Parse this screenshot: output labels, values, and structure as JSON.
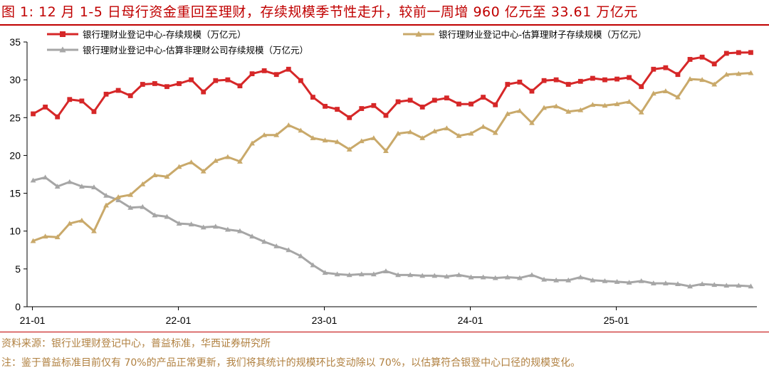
{
  "title": "图 1:  12 月 1-5 日母行资金重回至理财，存续规模季节性走升，较前一周增 960 亿元至 33.61 万亿元",
  "source": "资料来源：银行业理财登记中心，普益标准，华西证券研究所",
  "note": "注：鉴于普益标准目前仅有 70%的产品正常更新，我们将其统计的规模环比变动除以 70%，以估算符合银登中心口径的规模变化。",
  "chart_data": {
    "type": "line",
    "x_tick_labels": [
      "21-01",
      "22-01",
      "23-01",
      "24-01",
      "25-01"
    ],
    "y_ticks": [
      0,
      5,
      10,
      15,
      20,
      25,
      30,
      35
    ],
    "ylim": [
      0,
      35
    ],
    "points_per_series": 60,
    "grid": false,
    "legend_position": "top",
    "series": [
      {
        "name": "银行理财业登记中心-存续规模（万亿元）",
        "color": "#d62728",
        "marker": "square",
        "values": [
          25.5,
          26.4,
          25.1,
          27.4,
          27.2,
          25.8,
          28.1,
          28.6,
          27.9,
          29.4,
          29.5,
          29.1,
          29.5,
          30.0,
          28.4,
          29.9,
          30.0,
          29.2,
          30.8,
          31.2,
          30.7,
          31.4,
          29.9,
          27.7,
          26.5,
          26.1,
          25.0,
          26.2,
          26.6,
          25.3,
          27.1,
          27.3,
          26.4,
          27.3,
          27.6,
          26.8,
          26.8,
          27.7,
          26.7,
          29.4,
          29.7,
          28.5,
          29.9,
          30.0,
          29.4,
          29.8,
          30.2,
          30.0,
          30.1,
          30.3,
          29.1,
          31.4,
          31.6,
          30.7,
          32.7,
          33.0,
          32.1,
          33.5,
          33.6,
          33.61
        ]
      },
      {
        "name": "银行理财业登记中心-估算理财子存续规模（万亿元）",
        "color": "#c9a96a",
        "marker": "triangle",
        "values": [
          8.7,
          9.3,
          9.2,
          11.0,
          11.4,
          10.0,
          13.4,
          14.5,
          14.8,
          16.2,
          17.4,
          17.2,
          18.5,
          19.1,
          17.9,
          19.3,
          19.8,
          19.2,
          21.6,
          22.7,
          22.7,
          24.0,
          23.3,
          22.3,
          22.0,
          21.8,
          20.8,
          21.9,
          22.3,
          20.6,
          22.9,
          23.1,
          22.3,
          23.2,
          23.6,
          22.6,
          22.9,
          23.8,
          23.0,
          25.5,
          25.9,
          24.3,
          26.3,
          26.5,
          25.8,
          26.0,
          26.7,
          26.6,
          26.8,
          27.1,
          25.7,
          28.2,
          28.5,
          27.7,
          30.1,
          30.0,
          29.4,
          30.7,
          30.8,
          30.9
        ]
      },
      {
        "name": "银行理财业登记中心-估算非理财公司存续规模（万亿元）",
        "color": "#a6a6a6",
        "marker": "triangle",
        "values": [
          16.7,
          17.1,
          15.9,
          16.5,
          15.9,
          15.8,
          14.7,
          14.1,
          13.1,
          13.2,
          12.1,
          11.9,
          11.0,
          10.9,
          10.5,
          10.6,
          10.2,
          10.0,
          9.3,
          8.6,
          8.0,
          7.5,
          6.7,
          5.5,
          4.5,
          4.3,
          4.2,
          4.3,
          4.3,
          4.7,
          4.2,
          4.2,
          4.1,
          4.1,
          4.0,
          4.2,
          3.9,
          3.9,
          3.8,
          3.9,
          3.8,
          4.2,
          3.6,
          3.5,
          3.5,
          3.9,
          3.5,
          3.4,
          3.3,
          3.2,
          3.4,
          3.1,
          3.1,
          3.0,
          2.7,
          3.0,
          2.9,
          2.8,
          2.8,
          2.7
        ]
      }
    ]
  }
}
